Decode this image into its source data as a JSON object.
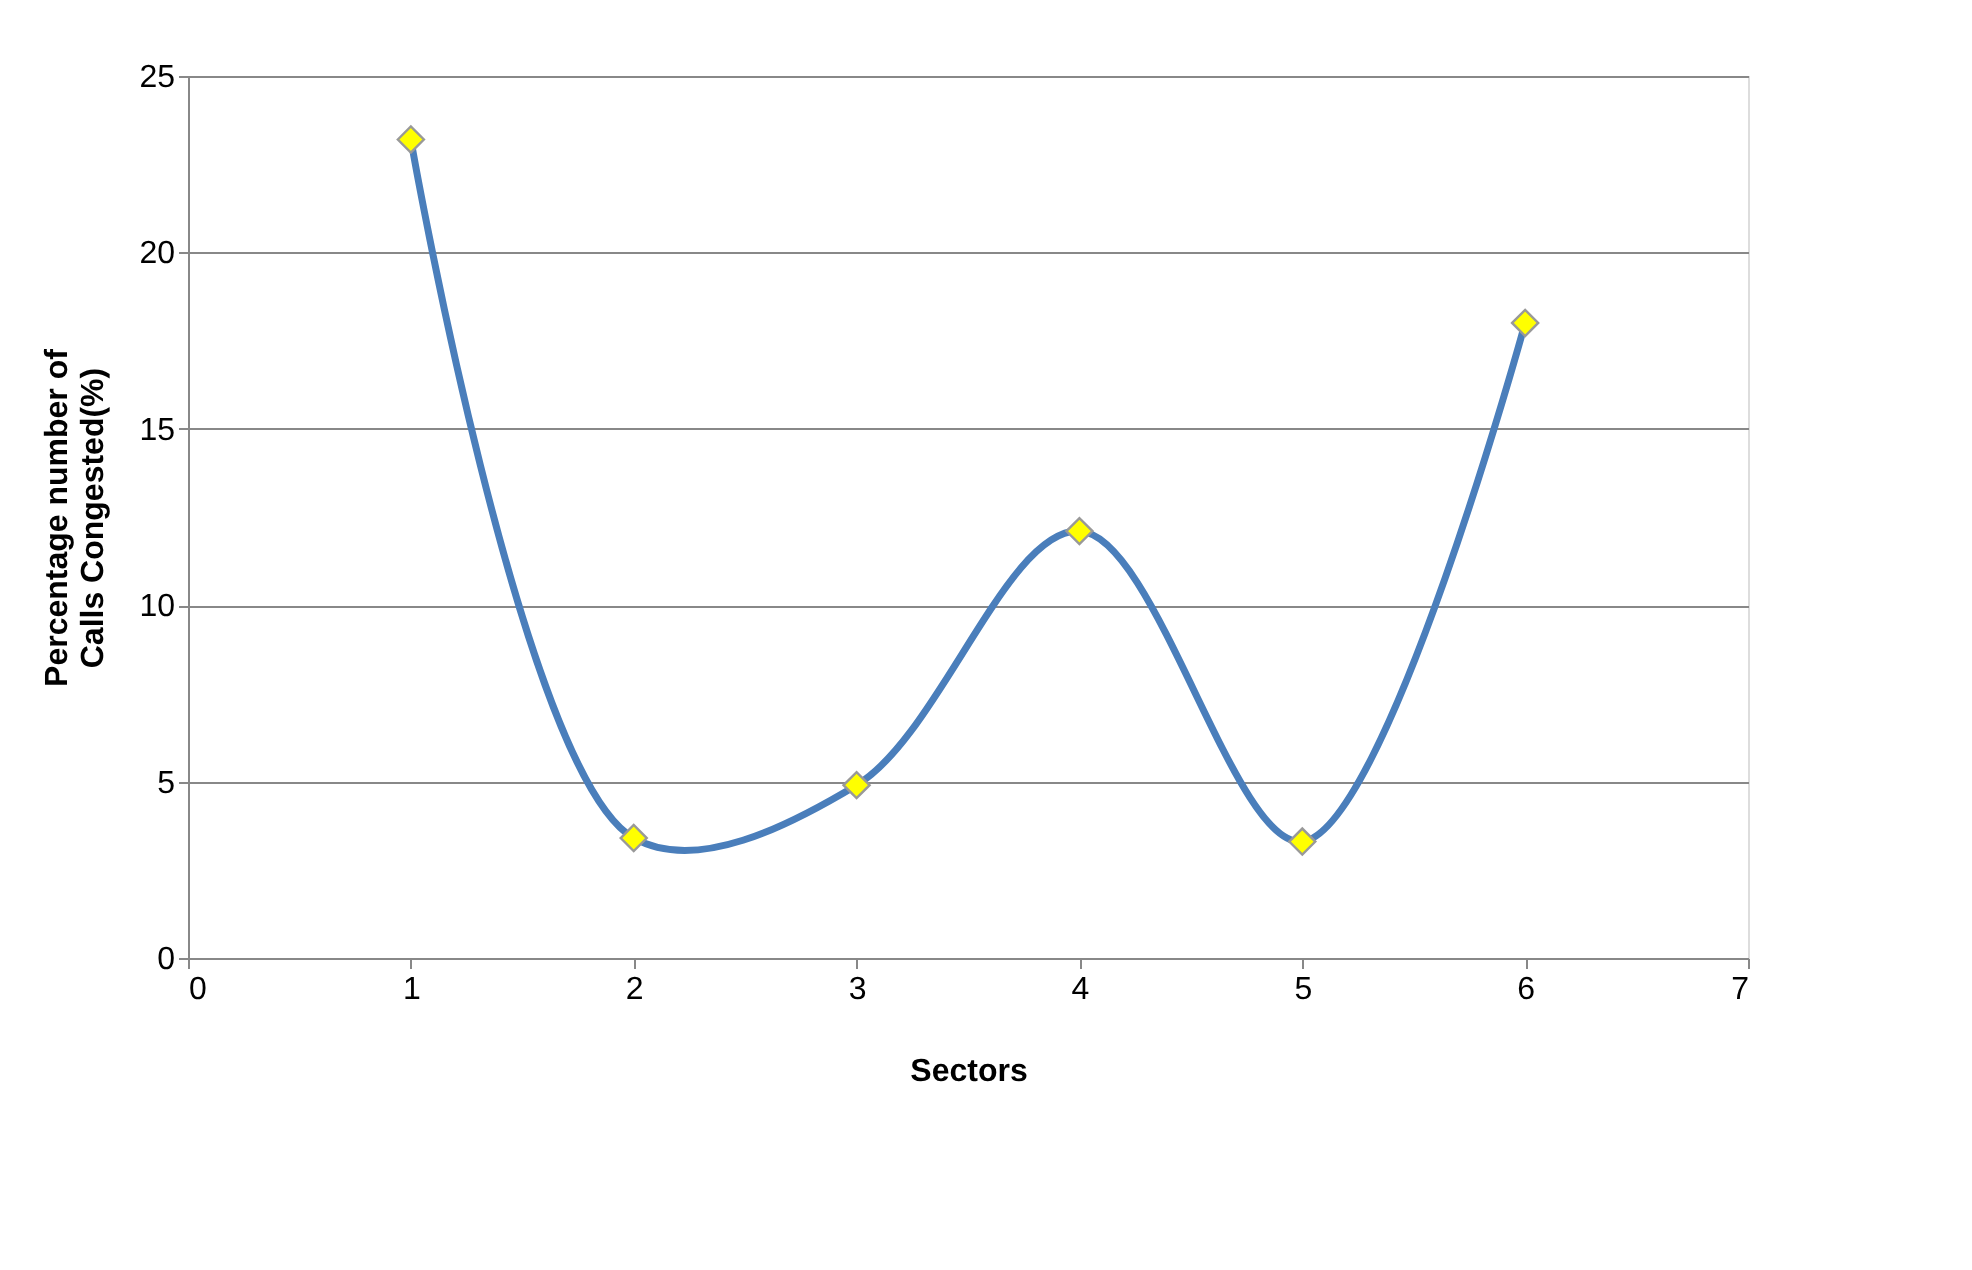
{
  "chart_data": {
    "type": "line",
    "xlabel": "Sectors",
    "ylabel": "Percentage number of Calls Congested(%)",
    "x": [
      1,
      2,
      3,
      4,
      5,
      6
    ],
    "series": [
      {
        "color": "#4a7ebb",
        "values": [
          23.2,
          3.4,
          4.9,
          12.1,
          3.3,
          18.0
        ]
      }
    ],
    "xlim": [
      0,
      7
    ],
    "xticks": [
      0,
      1,
      2,
      3,
      4,
      5,
      6,
      7
    ],
    "ylim": [
      0,
      25
    ],
    "yticks": [
      0,
      5,
      10,
      15,
      20,
      25
    ],
    "grid": "y",
    "marker": "diamond",
    "line_style": "solid"
  }
}
